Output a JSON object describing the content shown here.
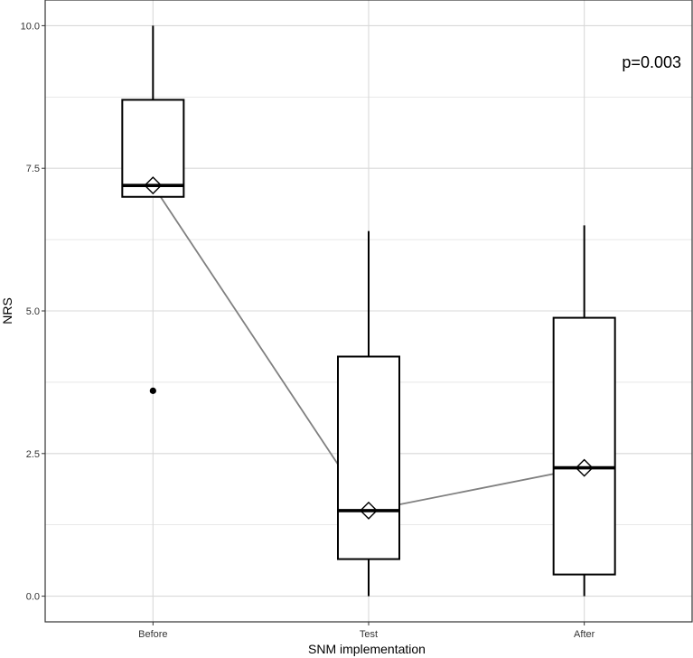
{
  "chart_data": {
    "type": "boxplot",
    "categories": [
      "Before",
      "Test",
      "After"
    ],
    "xlabel": "SNM implementation",
    "ylabel": "NRS",
    "ylim": [
      -0.45,
      10.45
    ],
    "yticks": [
      0.0,
      2.5,
      5.0,
      7.5,
      10.0
    ],
    "ytick_labels": [
      "0.0",
      "2.5",
      "5.0",
      "7.5",
      "10.0"
    ],
    "grid": true,
    "annotation": "p=0.003",
    "annotation_position": "top-right",
    "boxes": [
      {
        "category": "Before",
        "whisker_low": 7.0,
        "q1": 7.0,
        "median": 7.2,
        "q3": 8.7,
        "whisker_high": 10.0,
        "mean": 7.2,
        "outliers": [
          3.6
        ]
      },
      {
        "category": "Test",
        "whisker_low": 0.0,
        "q1": 0.65,
        "median": 1.5,
        "q3": 4.2,
        "whisker_high": 6.4,
        "mean": 1.5,
        "outliers": []
      },
      {
        "category": "After",
        "whisker_low": 0.0,
        "q1": 0.38,
        "median": 2.25,
        "q3": 4.88,
        "whisker_high": 6.5,
        "mean": 2.25,
        "outliers": []
      }
    ],
    "mean_line": {
      "values": [
        7.2,
        1.5,
        2.25
      ],
      "color": "#808080"
    },
    "colors": {
      "box": "#000000",
      "grid": "#d9d9d9",
      "panel_border": "#333333",
      "mean_line": "#808080"
    }
  }
}
